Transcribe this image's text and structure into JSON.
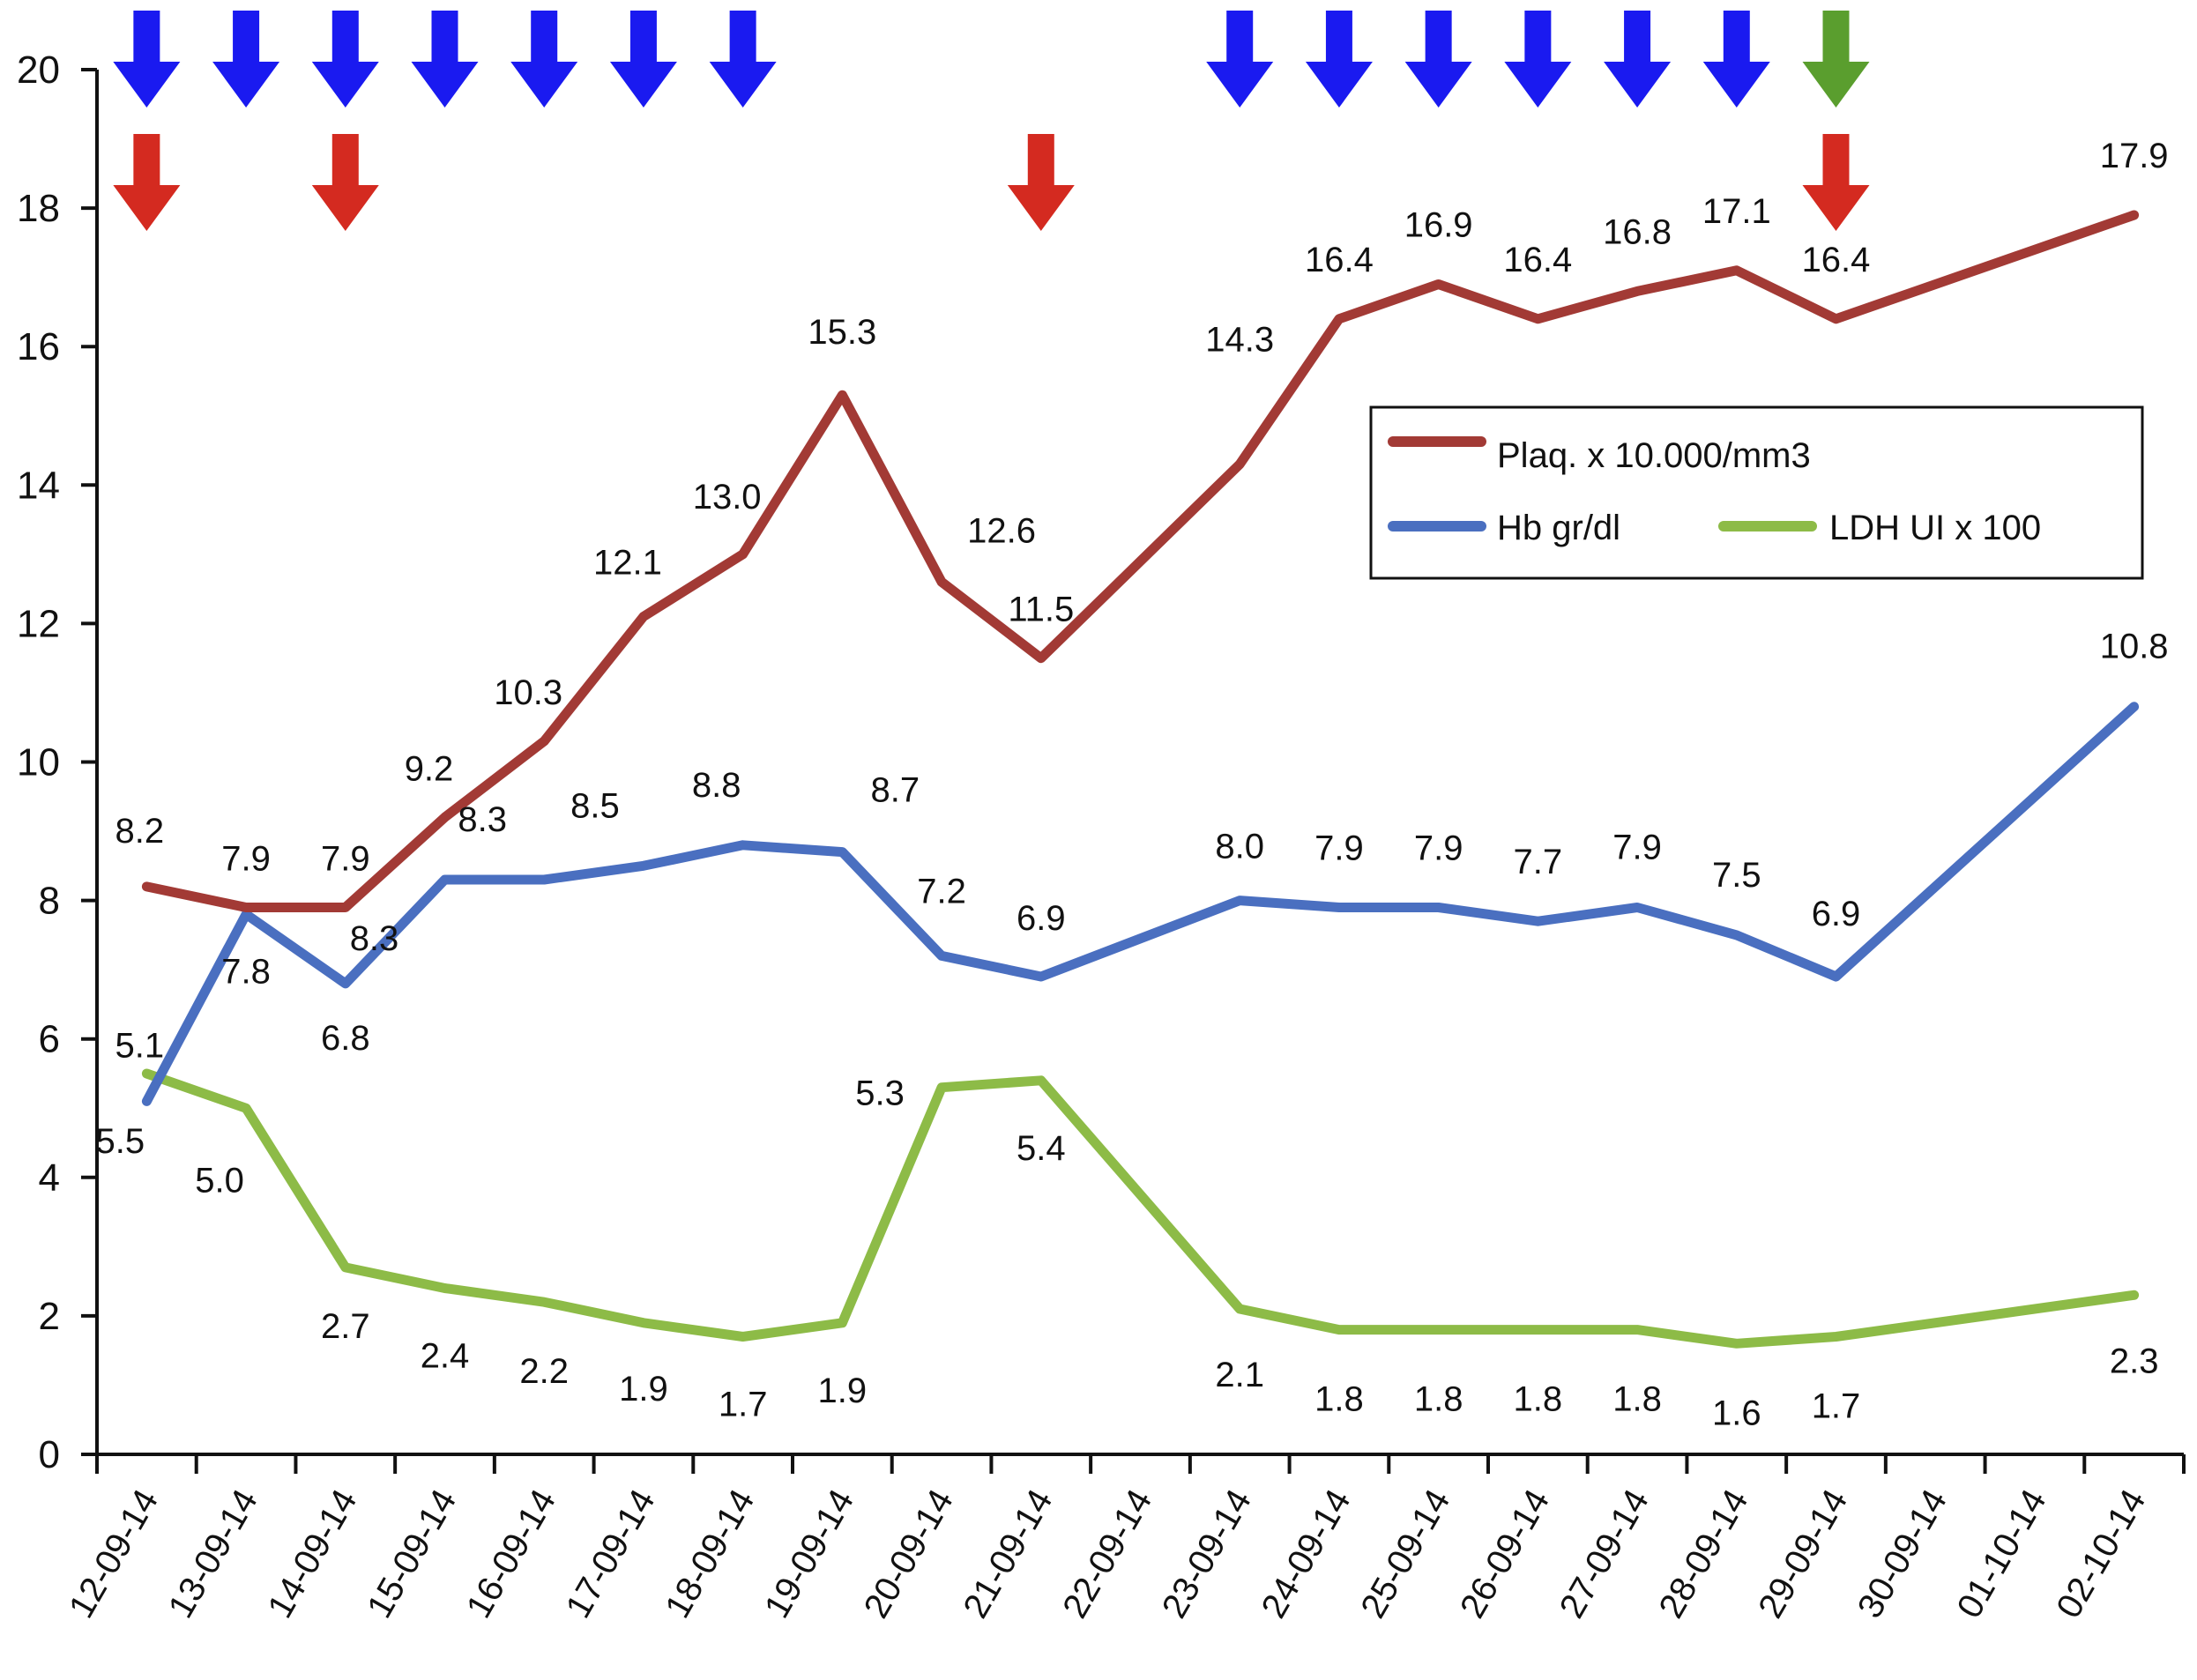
{
  "chart_data": {
    "type": "line",
    "title": "",
    "xlabel": "",
    "ylabel": "",
    "ylim": [
      0,
      20
    ],
    "yticks": [
      0,
      2,
      4,
      6,
      8,
      10,
      12,
      14,
      16,
      18,
      20
    ],
    "grid": false,
    "legend_position": "right-center",
    "categories": [
      "12-09-14",
      "13-09-14",
      "14-09-14",
      "15-09-14",
      "16-09-14",
      "17-09-14",
      "18-09-14",
      "19-09-14",
      "20-09-14",
      "21-09-14",
      "22-09-14",
      "23-09-14",
      "24-09-14",
      "25-09-14",
      "26-09-14",
      "27-09-14",
      "28-09-14",
      "29-09-14",
      "30-09-14",
      "01-10-14",
      "02-10-14"
    ],
    "series": [
      {
        "name": "Plaq. x 10.000/mm3",
        "color": "#A23A35",
        "values": [
          8.2,
          7.9,
          7.9,
          9.2,
          10.3,
          12.1,
          13.0,
          15.3,
          12.6,
          11.5,
          null,
          14.3,
          16.4,
          16.9,
          16.4,
          16.8,
          17.1,
          16.4,
          null,
          null,
          17.9
        ],
        "labels": [
          "8.2",
          "7.9",
          "7.9",
          "9.2",
          "10.3",
          "12.1",
          "13.0",
          "15.3",
          "12.6",
          "11.5",
          null,
          "14.3",
          "16.4",
          "16.9",
          "16.4",
          "16.8",
          "17.1",
          "16.4",
          null,
          null,
          "17.9"
        ]
      },
      {
        "name": "Hb gr/dl",
        "color": "#4A6FC0",
        "values": [
          5.1,
          7.8,
          6.8,
          8.3,
          8.3,
          8.5,
          8.8,
          8.7,
          7.2,
          6.9,
          null,
          8.0,
          7.9,
          7.9,
          7.7,
          7.9,
          7.5,
          6.9,
          null,
          null,
          10.8
        ],
        "labels": [
          "5.1",
          "7.8",
          "6.8",
          "8.3",
          "8.3",
          "8.5",
          "8.8",
          "8.7",
          "7.2",
          "6.9",
          null,
          "8.0",
          "7.9",
          "7.9",
          "7.7",
          "7.9",
          "7.5",
          "6.9",
          null,
          null,
          "10.8"
        ]
      },
      {
        "name": "LDH UI x 100",
        "color": "#8DBB47",
        "values": [
          5.5,
          5.0,
          2.7,
          2.4,
          2.2,
          1.9,
          1.7,
          1.9,
          5.3,
          5.4,
          null,
          2.1,
          1.8,
          1.8,
          1.8,
          1.8,
          1.6,
          1.7,
          null,
          null,
          2.3
        ],
        "labels": [
          "5.5",
          "5.0",
          "2.7",
          "2.4",
          "2.2",
          "1.9",
          "1.7",
          "1.9",
          "5.3",
          "5.4",
          null,
          "2.1",
          "1.8",
          "1.8",
          "1.8",
          "1.8",
          "1.6",
          "1.7",
          null,
          null,
          "2.3"
        ]
      }
    ],
    "markers": {
      "top_row": [
        {
          "category": "12-09-14",
          "color": "#1A1AF0"
        },
        {
          "category": "13-09-14",
          "color": "#1A1AF0"
        },
        {
          "category": "14-09-14",
          "color": "#1A1AF0"
        },
        {
          "category": "15-09-14",
          "color": "#1A1AF0"
        },
        {
          "category": "16-09-14",
          "color": "#1A1AF0"
        },
        {
          "category": "17-09-14",
          "color": "#1A1AF0"
        },
        {
          "category": "18-09-14",
          "color": "#1A1AF0"
        },
        {
          "category": "23-09-14",
          "color": "#1A1AF0"
        },
        {
          "category": "24-09-14",
          "color": "#1A1AF0"
        },
        {
          "category": "25-09-14",
          "color": "#1A1AF0"
        },
        {
          "category": "26-09-14",
          "color": "#1A1AF0"
        },
        {
          "category": "27-09-14",
          "color": "#1A1AF0"
        },
        {
          "category": "28-09-14",
          "color": "#1A1AF0"
        },
        {
          "category": "29-09-14",
          "color": "#5A9E2E"
        }
      ],
      "bottom_row": [
        {
          "category": "12-09-14",
          "color": "#D42A20"
        },
        {
          "category": "14-09-14",
          "color": "#D42A20"
        },
        {
          "category": "21-09-14",
          "color": "#D42A20"
        },
        {
          "category": "29-09-14",
          "color": "#D42A20"
        }
      ]
    }
  }
}
